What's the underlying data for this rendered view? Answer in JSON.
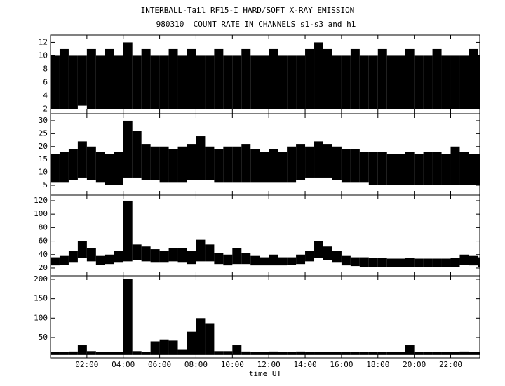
{
  "chart_data": [
    {
      "type": "range",
      "title": "INTERBALL-Tail RF15-I HARD/SOFT X-RAY EMISSION",
      "subtitle": "980310  COUNT RATE IN CHANNELS s1-s3 and h1",
      "xlim": [
        0,
        23.6
      ],
      "ylim": [
        1.3,
        13.1
      ],
      "yticks": [
        2,
        4,
        6,
        8,
        10,
        12
      ],
      "x": [
        0,
        0.5,
        1,
        1.5,
        2,
        2.5,
        3,
        3.5,
        4,
        4.5,
        5,
        5.5,
        6,
        6.5,
        7,
        7.5,
        8,
        8.5,
        9,
        9.5,
        10,
        10.5,
        11,
        11.5,
        12,
        12.5,
        13,
        13.5,
        14,
        14.5,
        15,
        15.5,
        16,
        16.5,
        17,
        17.5,
        18,
        18.5,
        19,
        19.5,
        20,
        20.5,
        21,
        21.5,
        22,
        22.5,
        23,
        23.5
      ],
      "series": [
        {
          "color": "#000000",
          "low": [
            2,
            2,
            2,
            2.5,
            2,
            2,
            2,
            2,
            2,
            2,
            2,
            2,
            2,
            2,
            2,
            2,
            2,
            2,
            2,
            2,
            2,
            2,
            2,
            2,
            2,
            2,
            2,
            2,
            2,
            2,
            2,
            2,
            2,
            2,
            2,
            2,
            2,
            2,
            2,
            2,
            2,
            2,
            2,
            2,
            2,
            2,
            2,
            2
          ],
          "high": [
            10,
            11,
            10,
            10,
            11,
            10,
            11,
            10,
            12,
            10,
            11,
            10,
            10,
            11,
            10,
            11,
            10,
            10,
            11,
            10,
            10,
            11,
            10,
            10,
            11,
            10,
            10,
            10,
            11,
            12,
            11,
            10,
            10,
            11,
            10,
            10,
            11,
            10,
            10,
            11,
            10,
            10,
            11,
            10,
            10,
            10,
            11,
            10
          ]
        }
      ]
    },
    {
      "type": "range",
      "xlim": [
        0,
        23.6
      ],
      "ylim": [
        1.2,
        32.7
      ],
      "yticks": [
        5,
        10,
        15,
        20,
        25,
        30
      ],
      "x": [
        0,
        0.5,
        1,
        1.5,
        2,
        2.5,
        3,
        3.5,
        4,
        4.5,
        5,
        5.5,
        6,
        6.5,
        7,
        7.5,
        8,
        8.5,
        9,
        9.5,
        10,
        10.5,
        11,
        11.5,
        12,
        12.5,
        13,
        13.5,
        14,
        14.5,
        15,
        15.5,
        16,
        16.5,
        17,
        17.5,
        18,
        18.5,
        19,
        19.5,
        20,
        20.5,
        21,
        21.5,
        22,
        22.5,
        23,
        23.5
      ],
      "series": [
        {
          "color": "#000000",
          "low": [
            6,
            6,
            7,
            8,
            7,
            6,
            5,
            5,
            8,
            8,
            7,
            7,
            6,
            6,
            6,
            7,
            7,
            7,
            6,
            6,
            6,
            6,
            6,
            6,
            6,
            6,
            6,
            7,
            8,
            8,
            8,
            7,
            6,
            6,
            6,
            5,
            5,
            5,
            5,
            5,
            5,
            5,
            5,
            5,
            5,
            5,
            5,
            5
          ],
          "high": [
            17,
            18,
            19,
            22,
            20,
            18,
            17,
            18,
            30,
            26,
            21,
            20,
            20,
            19,
            20,
            21,
            24,
            20,
            19,
            20,
            20,
            21,
            19,
            18,
            19,
            18,
            20,
            21,
            20,
            22,
            21,
            20,
            19,
            19,
            18,
            18,
            18,
            17,
            17,
            18,
            17,
            18,
            18,
            17,
            20,
            18,
            17,
            17
          ]
        }
      ]
    },
    {
      "type": "range",
      "xlim": [
        0,
        23.6
      ],
      "ylim": [
        8.5,
        128.3
      ],
      "yticks": [
        20,
        40,
        60,
        80,
        100,
        120
      ],
      "x": [
        0,
        0.5,
        1,
        1.5,
        2,
        2.5,
        3,
        3.5,
        4,
        4.5,
        5,
        5.5,
        6,
        6.5,
        7,
        7.5,
        8,
        8.5,
        9,
        9.5,
        10,
        10.5,
        11,
        11.5,
        12,
        12.5,
        13,
        13.5,
        14,
        14.5,
        15,
        15.5,
        16,
        16.5,
        17,
        17.5,
        18,
        18.5,
        19,
        19.5,
        20,
        20.5,
        21,
        21.5,
        22,
        22.5,
        23,
        23.5
      ],
      "series": [
        {
          "color": "#000000",
          "low": [
            24,
            25,
            28,
            35,
            30,
            25,
            26,
            28,
            30,
            32,
            30,
            28,
            28,
            30,
            28,
            26,
            30,
            30,
            26,
            24,
            26,
            26,
            24,
            24,
            24,
            24,
            25,
            26,
            30,
            35,
            32,
            28,
            24,
            23,
            22,
            22,
            22,
            22,
            22,
            22,
            22,
            22,
            22,
            22,
            22,
            25,
            24,
            22
          ],
          "high": [
            36,
            38,
            45,
            60,
            50,
            38,
            40,
            45,
            120,
            55,
            52,
            48,
            45,
            50,
            50,
            45,
            62,
            55,
            42,
            40,
            50,
            42,
            38,
            36,
            40,
            36,
            36,
            40,
            45,
            60,
            52,
            45,
            38,
            36,
            36,
            35,
            35,
            34,
            34,
            35,
            34,
            34,
            34,
            34,
            35,
            40,
            38,
            36
          ]
        }
      ]
    },
    {
      "type": "range",
      "xlim": [
        0,
        23.6
      ],
      "ylim": [
        -2.5,
        209
      ],
      "yticks": [
        50,
        100,
        150,
        200
      ],
      "xlabel": "time UT",
      "xticks": [
        {
          "value": 2,
          "label": "02:00"
        },
        {
          "value": 4,
          "label": "04:00"
        },
        {
          "value": 6,
          "label": "06:00"
        },
        {
          "value": 8,
          "label": "08:00"
        },
        {
          "value": 10,
          "label": "10:00"
        },
        {
          "value": 12,
          "label": "12:00"
        },
        {
          "value": 14,
          "label": "14:00"
        },
        {
          "value": 16,
          "label": "16:00"
        },
        {
          "value": 18,
          "label": "18:00"
        },
        {
          "value": 20,
          "label": "20:00"
        },
        {
          "value": 22,
          "label": "22:00"
        }
      ],
      "x": [
        0,
        0.5,
        1,
        1.5,
        2,
        2.5,
        3,
        3.5,
        4,
        4.5,
        5,
        5.5,
        6,
        6.5,
        7,
        7.5,
        8,
        8.5,
        9,
        9.5,
        10,
        10.5,
        11,
        11.5,
        12,
        12.5,
        13,
        13.5,
        14,
        14.5,
        15,
        15.5,
        16,
        16.5,
        17,
        17.5,
        18,
        18.5,
        19,
        19.5,
        20,
        20.5,
        21,
        21.5,
        22,
        22.5,
        23,
        23.5
      ],
      "series": [
        {
          "color": "#000000",
          "low": [
            5,
            5,
            5,
            5,
            5,
            5,
            5,
            5,
            5,
            5,
            5,
            5,
            5,
            5,
            5,
            5,
            5,
            5,
            5,
            5,
            5,
            5,
            5,
            5,
            5,
            5,
            5,
            5,
            5,
            5,
            5,
            5,
            5,
            5,
            5,
            5,
            5,
            5,
            5,
            5,
            5,
            5,
            5,
            5,
            5,
            5,
            5,
            5
          ],
          "high": [
            12,
            12,
            14,
            30,
            15,
            12,
            12,
            12,
            200,
            15,
            12,
            40,
            45,
            42,
            20,
            65,
            100,
            87,
            15,
            15,
            30,
            14,
            12,
            12,
            14,
            12,
            12,
            14,
            12,
            12,
            12,
            12,
            12,
            12,
            12,
            12,
            12,
            12,
            12,
            30,
            12,
            12,
            12,
            12,
            12,
            14,
            12,
            12
          ]
        }
      ]
    }
  ]
}
